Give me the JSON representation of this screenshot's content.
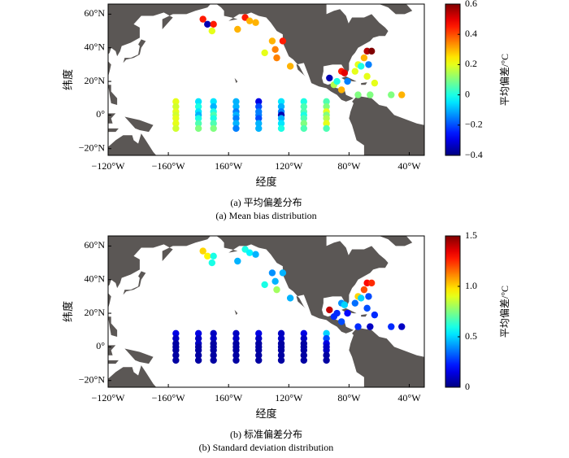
{
  "chart_data": [
    {
      "type": "scatter",
      "title": "(a) 平均偏差分布",
      "subtitle": "(a) Mean bias distribution",
      "xlabel": "经度",
      "ylabel": "纬度",
      "xlim": [
        120,
        330
      ],
      "ylim": [
        -24,
        66
      ],
      "xticks": [
        {
          "value": 120,
          "label": "−120°W"
        },
        {
          "value": 160,
          "label": "−160°W"
        },
        {
          "value": 200,
          "label": "160°W"
        },
        {
          "value": 240,
          "label": "120°W"
        },
        {
          "value": 280,
          "label": "80°W"
        },
        {
          "value": 320,
          "label": "40°W"
        }
      ],
      "yticks": [
        {
          "value": 60,
          "label": "60°N"
        },
        {
          "value": 40,
          "label": "40°N"
        },
        {
          "value": 20,
          "label": "20°N"
        },
        {
          "value": 0,
          "label": "0°"
        },
        {
          "value": -20,
          "label": "−20°N"
        }
      ],
      "colormap": "jet",
      "colorbar": {
        "label": "平均偏差/°C",
        "lim": [
          -0.4,
          0.6
        ],
        "ticks": [
          0.6,
          0.4,
          0.2,
          0,
          {
            "value": -0.2,
            "label": "−0.2"
          },
          {
            "value": -0.4,
            "label": "−0.4"
          }
        ]
      },
      "x": [
        165,
        165,
        165,
        165,
        165,
        165,
        165,
        180,
        180,
        180,
        180,
        180,
        180,
        180,
        190,
        190,
        190,
        190,
        190,
        190,
        190,
        205,
        205,
        205,
        205,
        205,
        205,
        205,
        220,
        220,
        220,
        220,
        220,
        220,
        220,
        235,
        235,
        235,
        235,
        235,
        235,
        235,
        250,
        250,
        250,
        250,
        250,
        250,
        250,
        265,
        265,
        265,
        265,
        265,
        265,
        265,
        183,
        186,
        190,
        189,
        211,
        214,
        218,
        206,
        229,
        236,
        231,
        232,
        224,
        241,
        267,
        270,
        275,
        277,
        284,
        286,
        290,
        292,
        295,
        288,
        293,
        292,
        297,
        279,
        272,
        275,
        286,
        294,
        308,
        315
      ],
      "y": [
        8,
        5,
        2,
        0,
        -2,
        -5,
        -8,
        8,
        5,
        2,
        0,
        -2,
        -5,
        -8,
        8,
        5,
        2,
        0,
        -2,
        -5,
        -8,
        8,
        5,
        2,
        0,
        -2,
        -5,
        -8,
        8,
        5,
        2,
        0,
        -2,
        -5,
        -8,
        8,
        5,
        2,
        0,
        -2,
        -5,
        -8,
        8,
        5,
        2,
        0,
        -2,
        -5,
        -8,
        8,
        5,
        2,
        0,
        -2,
        -5,
        -8,
        57,
        54,
        54,
        50,
        58,
        56,
        55,
        51,
        44,
        44,
        39,
        34,
        37,
        29,
        22,
        18,
        26,
        25,
        26,
        30,
        34,
        38,
        38,
        29,
        30,
        23,
        19,
        20,
        20,
        15,
        12,
        12,
        12,
        12
      ],
      "values": [
        0.2,
        0.18,
        0.2,
        0.18,
        0.2,
        0.2,
        0.18,
        -0.05,
        0,
        -0.05,
        -0.1,
        0,
        0.05,
        0.1,
        -0.05,
        -0.1,
        0,
        0.05,
        0,
        0.05,
        0.1,
        -0.1,
        -0.1,
        -0.15,
        -0.1,
        -0.15,
        -0.1,
        -0.15,
        -0.3,
        -0.2,
        -0.15,
        -0.15,
        -0.2,
        -0.1,
        -0.1,
        -0.05,
        -0.1,
        -0.15,
        -0.35,
        -0.1,
        -0.05,
        0,
        0,
        0.05,
        0.05,
        0,
        0.05,
        0.1,
        0.05,
        0.05,
        0.1,
        0.2,
        0.1,
        0.15,
        0.2,
        0.05,
        0.45,
        -0.35,
        0.45,
        0.2,
        0.45,
        0.3,
        0.3,
        0.3,
        0.3,
        0.45,
        0.35,
        0.35,
        0.2,
        0.3,
        -0.35,
        0.15,
        0.45,
        0.5,
        0.2,
        0.2,
        0.3,
        0.55,
        0.6,
        0,
        -0.15,
        0.2,
        0.2,
        -0.15,
        0,
        0.3,
        0.1,
        0.1,
        0.1,
        0.3
      ]
    },
    {
      "type": "scatter",
      "title": "(b) 标准偏差分布",
      "subtitle": "(b) Standard deviation distribution",
      "xlabel": "经度",
      "ylabel": "纬度",
      "xlim": [
        120,
        330
      ],
      "ylim": [
        -24,
        66
      ],
      "xticks": [
        {
          "value": 120,
          "label": "−120°W"
        },
        {
          "value": 160,
          "label": "−160°W"
        },
        {
          "value": 200,
          "label": "160°W"
        },
        {
          "value": 240,
          "label": "120°W"
        },
        {
          "value": 280,
          "label": "80°W"
        },
        {
          "value": 320,
          "label": "40°W"
        }
      ],
      "yticks": [
        {
          "value": 60,
          "label": "60°N"
        },
        {
          "value": 40,
          "label": "40°N"
        },
        {
          "value": 20,
          "label": "20°N"
        },
        {
          "value": 0,
          "label": "0°"
        },
        {
          "value": -20,
          "label": "−20°N"
        }
      ],
      "colormap": "jet",
      "colorbar": {
        "label": "平均偏差/°C",
        "lim": [
          0,
          1.5
        ],
        "ticks": [
          1.5,
          {
            "value": 1,
            "label": "1.0"
          },
          0.5,
          0
        ]
      },
      "x": [
        165,
        165,
        165,
        165,
        165,
        165,
        165,
        180,
        180,
        180,
        180,
        180,
        180,
        180,
        190,
        190,
        190,
        190,
        190,
        190,
        190,
        205,
        205,
        205,
        205,
        205,
        205,
        205,
        220,
        220,
        220,
        220,
        220,
        220,
        220,
        235,
        235,
        235,
        235,
        235,
        235,
        235,
        250,
        250,
        250,
        250,
        250,
        250,
        250,
        265,
        265,
        265,
        265,
        265,
        265,
        265,
        183,
        186,
        190,
        189,
        211,
        214,
        218,
        206,
        229,
        236,
        231,
        232,
        224,
        241,
        267,
        270,
        275,
        277,
        284,
        286,
        290,
        292,
        295,
        288,
        293,
        292,
        297,
        279,
        272,
        275,
        286,
        294,
        308,
        315
      ],
      "y": [
        8,
        5,
        2,
        0,
        -2,
        -5,
        -8,
        8,
        5,
        2,
        0,
        -2,
        -5,
        -8,
        8,
        5,
        2,
        0,
        -2,
        -5,
        -8,
        8,
        5,
        2,
        0,
        -2,
        -5,
        -8,
        8,
        5,
        2,
        0,
        -2,
        -5,
        -8,
        8,
        5,
        2,
        0,
        -2,
        -5,
        -8,
        8,
        5,
        2,
        0,
        -2,
        -5,
        -8,
        8,
        5,
        2,
        0,
        -2,
        -5,
        -8,
        57,
        54,
        54,
        50,
        58,
        56,
        55,
        51,
        44,
        44,
        39,
        34,
        37,
        29,
        22,
        18,
        26,
        25,
        26,
        30,
        34,
        38,
        38,
        29,
        30,
        23,
        19,
        20,
        20,
        15,
        12,
        12,
        12,
        12
      ],
      "values": [
        0.15,
        0.1,
        0.05,
        0.05,
        0.05,
        0.05,
        0.05,
        0.15,
        0.1,
        0.1,
        0.05,
        0.05,
        0.05,
        0.05,
        0.1,
        0.1,
        0.05,
        0.05,
        0.05,
        0.05,
        0.05,
        0.1,
        0.1,
        0.05,
        0.05,
        0.05,
        0.05,
        0.05,
        0.15,
        0.1,
        0.05,
        0.05,
        0.05,
        0.05,
        0.05,
        0.1,
        0.1,
        0.05,
        0.05,
        0.05,
        0.05,
        0.05,
        0.15,
        0.1,
        0.05,
        0.05,
        0.05,
        0.05,
        0.05,
        0.5,
        0.3,
        0.15,
        0.1,
        0.1,
        0.05,
        0.05,
        1.0,
        0.95,
        0.6,
        0.6,
        0.6,
        0.55,
        0.45,
        0.45,
        0.4,
        0.45,
        0.45,
        0.8,
        0.6,
        0.45,
        1.4,
        0.25,
        0.4,
        0.5,
        0.35,
        1.0,
        1.2,
        1.3,
        1.25,
        0.5,
        0.3,
        0.3,
        0.25,
        0.2,
        0.25,
        0.3,
        0.25,
        0.1,
        0.25,
        0.1
      ]
    }
  ]
}
